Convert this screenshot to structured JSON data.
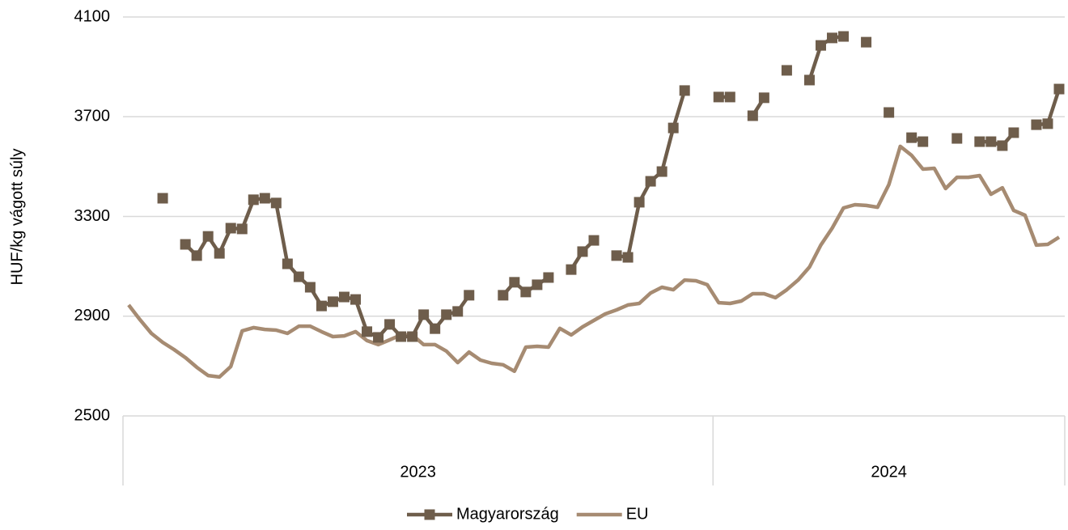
{
  "chart_data": {
    "type": "line",
    "y_label": "HUF/kg vágott súly",
    "categories": [
      null,
      null,
      null,
      null,
      null,
      null,
      null,
      null,
      null,
      null,
      null,
      null,
      null,
      null,
      null,
      null,
      null,
      null,
      null,
      null,
      null,
      null,
      null,
      null,
      null,
      null,
      null,
      null,
      null,
      null,
      null,
      null,
      null,
      null,
      null,
      null,
      null,
      null,
      null,
      null,
      null,
      null,
      null,
      null,
      null,
      null,
      null,
      null,
      null,
      null,
      null,
      null,
      null,
      null,
      null,
      null,
      null,
      null,
      null,
      null,
      null,
      null,
      null,
      null,
      null,
      null,
      null,
      null,
      null,
      null,
      null,
      null,
      null,
      null,
      null,
      null,
      null,
      null,
      null,
      null,
      null,
      null,
      null
    ],
    "x_groups": [
      {
        "label": "2023",
        "size": 52
      },
      {
        "label": "2024",
        "size": 31
      }
    ],
    "ylim": [
      2500,
      4100
    ],
    "yticks": [
      2500,
      2900,
      3300,
      3700,
      4100
    ],
    "grid": true,
    "legend": "bottom",
    "series": [
      {
        "name": "Magyarország",
        "color": "#6e5d4b",
        "marker": "square",
        "values": [
          null,
          null,
          null,
          3373,
          null,
          3188,
          3143,
          3220,
          3152,
          3253,
          3250,
          3367,
          3373,
          3354,
          3110,
          3058,
          3016,
          2941,
          2958,
          2977,
          2967,
          2838,
          2815,
          2867,
          2818,
          2818,
          2906,
          2850,
          2906,
          2919,
          2984,
          null,
          null,
          2984,
          3036,
          2997,
          3026,
          3055,
          null,
          3087,
          3159,
          3204,
          null,
          3143,
          3136,
          3357,
          3441,
          3480,
          3655,
          3805,
          null,
          null,
          3779,
          3779,
          null,
          3704,
          3776,
          null,
          3886,
          null,
          3847,
          3986,
          4016,
          4022,
          null,
          3999,
          null,
          3717,
          null,
          3616,
          3600,
          null,
          null,
          3613,
          null,
          3600,
          3600,
          3584,
          3636,
          null,
          3668,
          3672,
          3811
        ]
      },
      {
        "name": "EU",
        "color": "#a68b72",
        "values": [
          2945,
          2886,
          2831,
          2795,
          2766,
          2734,
          2695,
          2662,
          2656,
          2698,
          2841,
          2854,
          2847,
          2844,
          2831,
          2860,
          2860,
          2838,
          2818,
          2821,
          2838,
          2802,
          2786,
          2805,
          2825,
          2825,
          2786,
          2786,
          2760,
          2714,
          2756,
          2724,
          2711,
          2705,
          2679,
          2776,
          2779,
          2776,
          2851,
          2825,
          2857,
          2883,
          2909,
          2925,
          2945,
          2951,
          2993,
          3016,
          3006,
          3045,
          3042,
          3026,
          2954,
          2951,
          2961,
          2990,
          2990,
          2974,
          3006,
          3045,
          3097,
          3185,
          3253,
          3334,
          3347,
          3344,
          3337,
          3428,
          3581,
          3545,
          3490,
          3493,
          3412,
          3457,
          3457,
          3464,
          3389,
          3415,
          3324,
          3305,
          3185,
          3188,
          3217
        ]
      }
    ]
  }
}
